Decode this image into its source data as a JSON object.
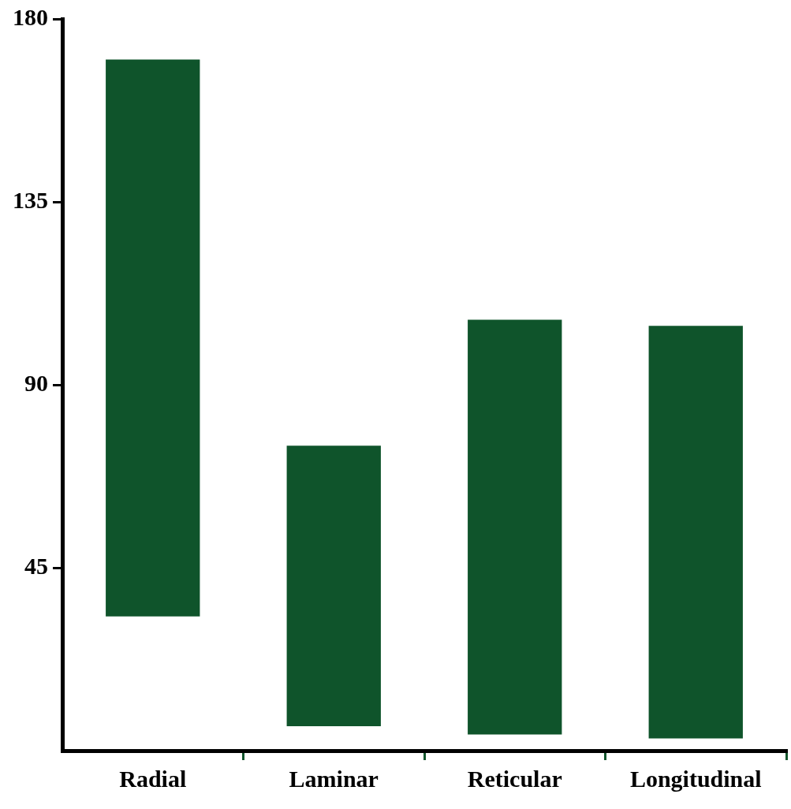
{
  "chart_data": {
    "type": "bar",
    "categories": [
      "Radial",
      "Laminar",
      "Reticular",
      "Longitudinal"
    ],
    "values": [
      137,
      69,
      102,
      101.5
    ],
    "base": [
      33,
      6,
      4,
      3
    ],
    "color": "#0f542b",
    "ylim": [
      0,
      180
    ],
    "yticks": [
      45,
      90,
      135,
      180
    ],
    "grid": false,
    "legend": false
  }
}
